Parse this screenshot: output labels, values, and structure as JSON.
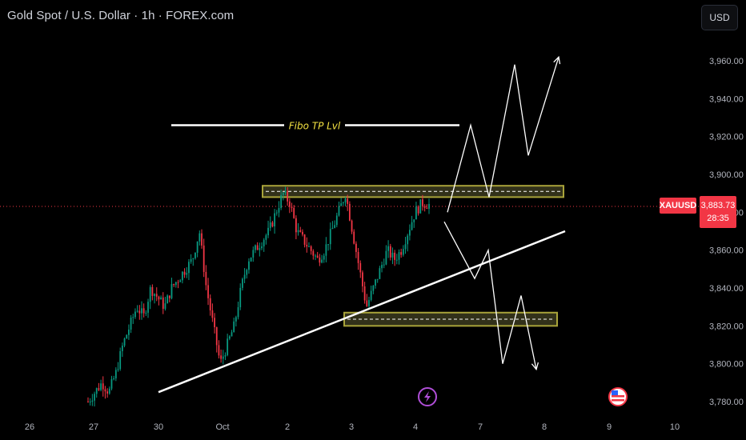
{
  "header": {
    "title": "Gold Spot / U.S. Dollar · 1h · FOREX.com",
    "currency_button": "USD"
  },
  "symbol_tag": "XAUUSD",
  "last_price": "3,883.73",
  "countdown": "28:35",
  "annotation": "Fibo TP Lvl",
  "colors": {
    "background": "#000000",
    "bull": "#089981",
    "bear": "#f23645",
    "zone_border": "#a8a33a",
    "zone_fill": "#3b3a1f",
    "annotation_text": "#f5e342",
    "lines": "#ffffff",
    "axis_text": "#b2b5be"
  },
  "icons": {
    "event_flash": "lightning-icon",
    "event_flag": "us-flag-icon"
  },
  "chart_data": {
    "type": "candlestick",
    "title": "Gold Spot / U.S. Dollar · 1h · FOREX.com",
    "xlabel": "",
    "ylabel": "",
    "x_ticks": [
      "26",
      "27",
      "30",
      "Oct",
      "2",
      "3",
      "4",
      "7",
      "8",
      "9",
      "10"
    ],
    "y_ticks": [
      "3,780.00",
      "3,800.00",
      "3,820.00",
      "3,840.00",
      "3,860.00",
      "3,880.00",
      "3,900.00",
      "3,920.00",
      "3,940.00",
      "3,960.00"
    ],
    "ylim": [
      3775,
      3970
    ],
    "last_price": 3883.73,
    "price_path": [
      3780,
      3785,
      3790,
      3785,
      3795,
      3810,
      3820,
      3830,
      3825,
      3840,
      3835,
      3830,
      3840,
      3845,
      3850,
      3855,
      3870,
      3840,
      3820,
      3800,
      3810,
      3820,
      3840,
      3855,
      3860,
      3865,
      3870,
      3880,
      3890,
      3885,
      3870,
      3865,
      3860,
      3855,
      3860,
      3870,
      3880,
      3890,
      3870,
      3850,
      3830,
      3840,
      3850,
      3860,
      3855,
      3860,
      3870,
      3880,
      3885,
      3884
    ],
    "resistance_zone": [
      3888,
      3894
    ],
    "support_zone": [
      3820,
      3827
    ],
    "fibo_tp_level": 3926,
    "trendline": [
      [
        3785,
        0
      ],
      [
        3870,
        1
      ]
    ],
    "projection_up": [
      3880,
      3926,
      3888,
      3958,
      3910,
      3962
    ],
    "projection_down": [
      3875,
      3845,
      3860,
      3800,
      3836,
      3797
    ]
  }
}
